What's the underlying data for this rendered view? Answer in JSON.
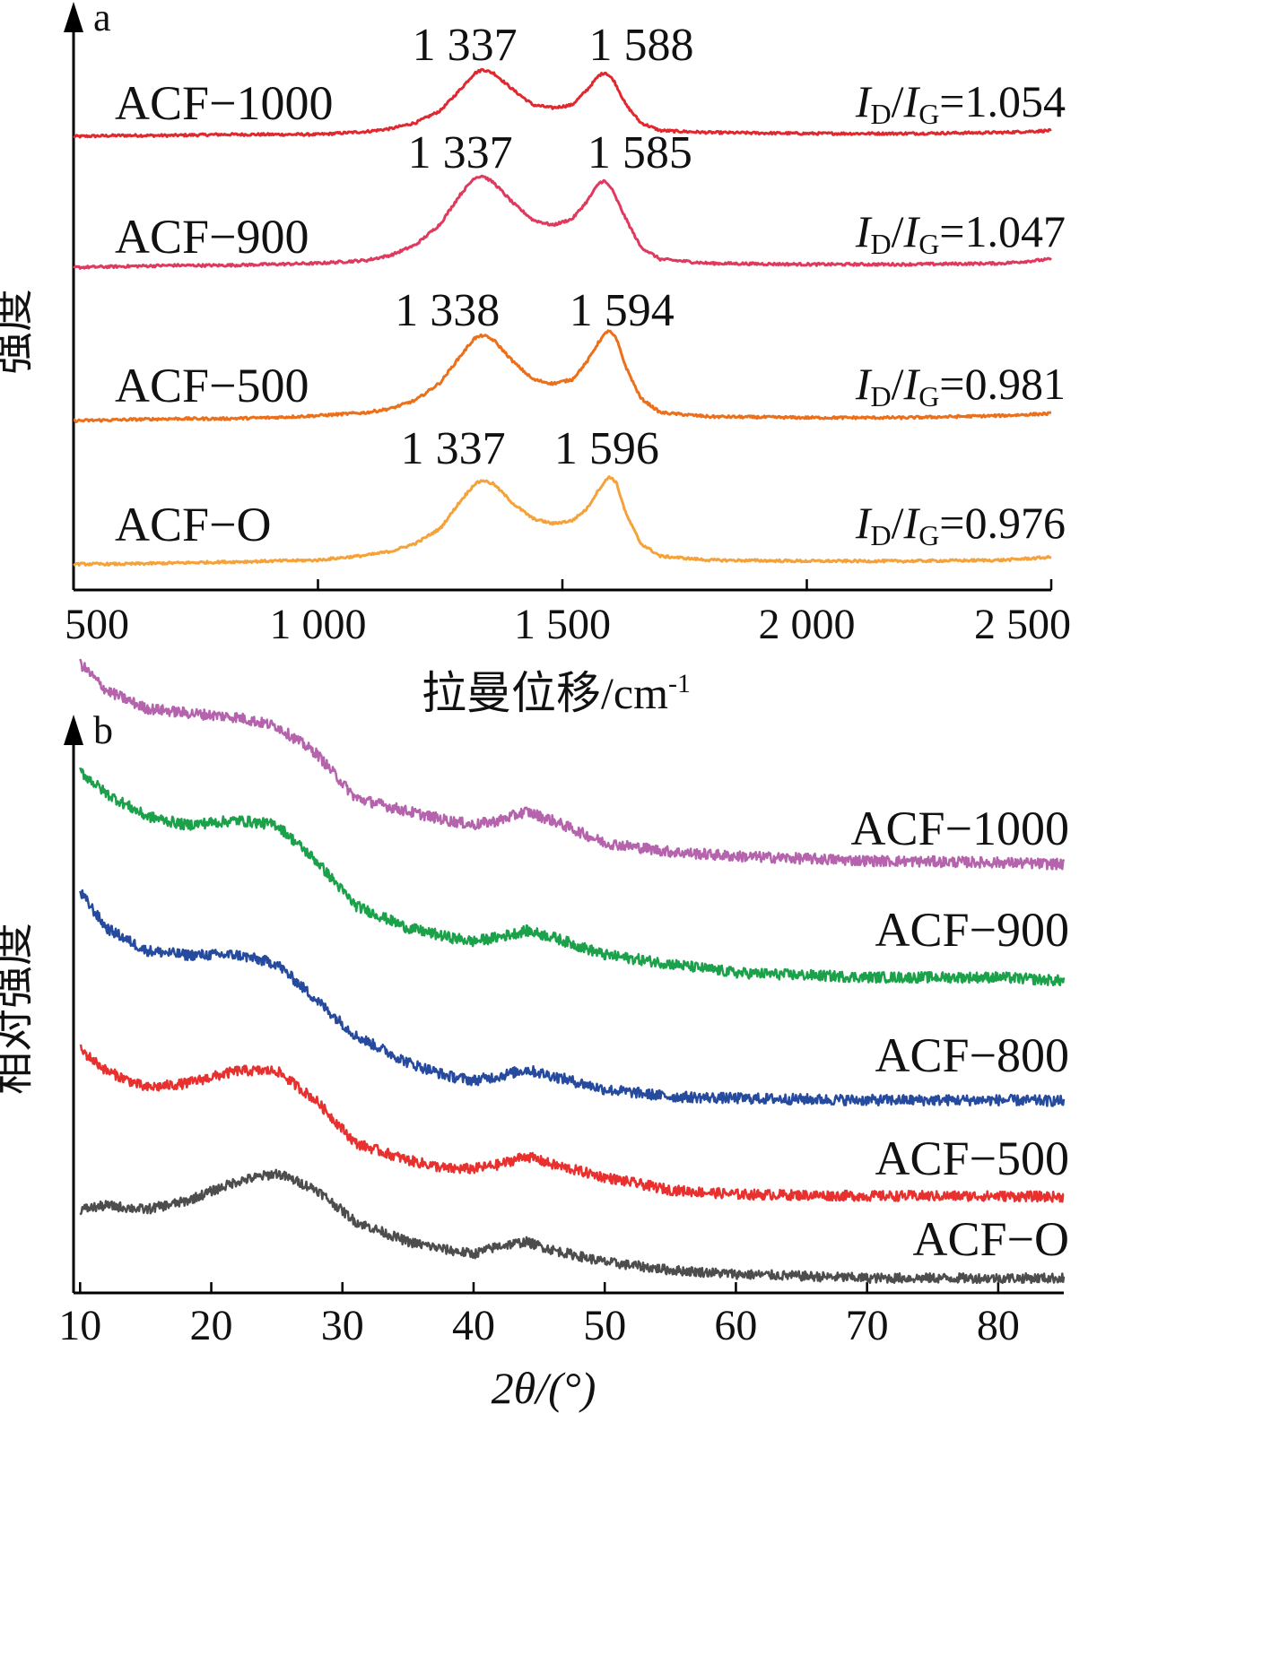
{
  "chart_data": [
    {
      "id": "a",
      "panel_label": "a",
      "type": "line",
      "xlabel_main": "拉曼位移/cm",
      "xlabel_sup": "-1",
      "ylabel": "强度",
      "xlim": [
        500,
        2500
      ],
      "xticks": [
        500,
        1000,
        1500,
        2000,
        2500
      ],
      "xtick_labels": [
        "500",
        "1 000",
        "1 500",
        "2 000",
        "2 500"
      ],
      "yticks": false,
      "series": [
        {
          "name": "ACF−1000",
          "color": "#e0282f",
          "points": [
            [
              500,
              -0.02
            ],
            [
              600,
              -0.01
            ],
            [
              700,
              -0.01
            ],
            [
              800,
              0
            ],
            [
              900,
              0
            ],
            [
              1000,
              0
            ],
            [
              1100,
              0.03
            ],
            [
              1150,
              0.06
            ],
            [
              1200,
              0.12
            ],
            [
              1250,
              0.24
            ],
            [
              1290,
              0.45
            ],
            [
              1320,
              0.62
            ],
            [
              1337,
              0.66
            ],
            [
              1360,
              0.62
            ],
            [
              1400,
              0.45
            ],
            [
              1440,
              0.3
            ],
            [
              1480,
              0.27
            ],
            [
              1520,
              0.3
            ],
            [
              1550,
              0.45
            ],
            [
              1575,
              0.6
            ],
            [
              1588,
              0.63
            ],
            [
              1605,
              0.55
            ],
            [
              1630,
              0.3
            ],
            [
              1660,
              0.12
            ],
            [
              1700,
              0.04
            ],
            [
              1800,
              0.02
            ],
            [
              2000,
              0.01
            ],
            [
              2200,
              0.01
            ],
            [
              2400,
              0.02
            ],
            [
              2500,
              0.04
            ]
          ],
          "peaks": [
            {
              "x": 1337,
              "label": "1 337"
            },
            {
              "x": 1588,
              "label": "1 588"
            }
          ],
          "ratio_value": "=1.054"
        },
        {
          "name": "ACF−900",
          "color": "#df3a5e",
          "points": [
            [
              500,
              -0.02
            ],
            [
              600,
              -0.01
            ],
            [
              700,
              0
            ],
            [
              800,
              0
            ],
            [
              900,
              0.01
            ],
            [
              1000,
              0.02
            ],
            [
              1100,
              0.05
            ],
            [
              1150,
              0.1
            ],
            [
              1200,
              0.2
            ],
            [
              1250,
              0.4
            ],
            [
              1290,
              0.68
            ],
            [
              1320,
              0.85
            ],
            [
              1337,
              0.87
            ],
            [
              1360,
              0.8
            ],
            [
              1400,
              0.6
            ],
            [
              1440,
              0.44
            ],
            [
              1480,
              0.39
            ],
            [
              1520,
              0.45
            ],
            [
              1550,
              0.62
            ],
            [
              1575,
              0.8
            ],
            [
              1585,
              0.82
            ],
            [
              1600,
              0.75
            ],
            [
              1630,
              0.45
            ],
            [
              1660,
              0.18
            ],
            [
              1700,
              0.06
            ],
            [
              1800,
              0.02
            ],
            [
              2000,
              0.01
            ],
            [
              2200,
              0.01
            ],
            [
              2400,
              0.02
            ],
            [
              2500,
              0.06
            ]
          ],
          "peaks": [
            {
              "x": 1337,
              "label": "1 337"
            },
            {
              "x": 1585,
              "label": "1 585"
            }
          ],
          "ratio_value": "=1.047"
        },
        {
          "name": "ACF−500",
          "color": "#ec6f1a",
          "points": [
            [
              500,
              -0.02
            ],
            [
              600,
              -0.01
            ],
            [
              700,
              0
            ],
            [
              800,
              0
            ],
            [
              900,
              0.01
            ],
            [
              1000,
              0.03
            ],
            [
              1100,
              0.06
            ],
            [
              1150,
              0.1
            ],
            [
              1200,
              0.18
            ],
            [
              1250,
              0.35
            ],
            [
              1290,
              0.6
            ],
            [
              1320,
              0.78
            ],
            [
              1338,
              0.81
            ],
            [
              1360,
              0.76
            ],
            [
              1400,
              0.55
            ],
            [
              1440,
              0.38
            ],
            [
              1480,
              0.34
            ],
            [
              1520,
              0.38
            ],
            [
              1550,
              0.55
            ],
            [
              1575,
              0.75
            ],
            [
              1594,
              0.86
            ],
            [
              1610,
              0.78
            ],
            [
              1630,
              0.5
            ],
            [
              1660,
              0.2
            ],
            [
              1700,
              0.06
            ],
            [
              1800,
              0.02
            ],
            [
              2000,
              0.01
            ],
            [
              2200,
              0.01
            ],
            [
              2400,
              0.03
            ],
            [
              2500,
              0.05
            ]
          ],
          "peaks": [
            {
              "x": 1338,
              "label": "1 338"
            },
            {
              "x": 1594,
              "label": "1 594"
            }
          ],
          "ratio_value": "=0.981"
        },
        {
          "name": "ACF−O",
          "color": "#f5a23a",
          "points": [
            [
              500,
              -0.01
            ],
            [
              600,
              -0.01
            ],
            [
              700,
              0
            ],
            [
              800,
              0.01
            ],
            [
              900,
              0.02
            ],
            [
              1000,
              0.03
            ],
            [
              1100,
              0.08
            ],
            [
              1150,
              0.12
            ],
            [
              1200,
              0.2
            ],
            [
              1250,
              0.35
            ],
            [
              1290,
              0.62
            ],
            [
              1320,
              0.8
            ],
            [
              1337,
              0.84
            ],
            [
              1360,
              0.8
            ],
            [
              1400,
              0.6
            ],
            [
              1440,
              0.45
            ],
            [
              1480,
              0.4
            ],
            [
              1520,
              0.43
            ],
            [
              1550,
              0.55
            ],
            [
              1575,
              0.75
            ],
            [
              1596,
              0.88
            ],
            [
              1610,
              0.82
            ],
            [
              1630,
              0.5
            ],
            [
              1660,
              0.2
            ],
            [
              1700,
              0.07
            ],
            [
              1800,
              0.03
            ],
            [
              2000,
              0.02
            ],
            [
              2200,
              0.02
            ],
            [
              2400,
              0.03
            ],
            [
              2500,
              0.06
            ]
          ],
          "peaks": [
            {
              "x": 1337,
              "label": "1 337"
            },
            {
              "x": 1596,
              "label": "1 596"
            }
          ],
          "ratio_value": "=0.976"
        }
      ],
      "ratio_label": {
        "i": "I",
        "d": "D",
        "slash": "/",
        "g": "G"
      }
    },
    {
      "id": "b",
      "panel_label": "b",
      "type": "line",
      "xlabel": "2θ/(°)",
      "ylabel": "相对强度",
      "xlim": [
        9.5,
        85
      ],
      "xticks": [
        10,
        20,
        30,
        40,
        50,
        60,
        70,
        80
      ],
      "xtick_labels": [
        "10",
        "20",
        "30",
        "40",
        "50",
        "60",
        "70",
        "80"
      ],
      "yticks": false,
      "series": [
        {
          "name": "ACF−1000",
          "color": "#b463ac",
          "points": [
            [
              10,
              2.6
            ],
            [
              12,
              2.3
            ],
            [
              15,
              2.1
            ],
            [
              18,
              2.05
            ],
            [
              22,
              2.0
            ],
            [
              25,
              1.9
            ],
            [
              28,
              1.6
            ],
            [
              31,
              1.1
            ],
            [
              35,
              0.95
            ],
            [
              38,
              0.85
            ],
            [
              40,
              0.8
            ],
            [
              42,
              0.85
            ],
            [
              44,
              0.95
            ],
            [
              46,
              0.85
            ],
            [
              50,
              0.6
            ],
            [
              55,
              0.5
            ],
            [
              60,
              0.45
            ],
            [
              70,
              0.4
            ],
            [
              80,
              0.38
            ],
            [
              85,
              0.36
            ]
          ]
        },
        {
          "name": "ACF−900",
          "color": "#1aa14a",
          "points": [
            [
              10,
              2.7
            ],
            [
              12,
              2.45
            ],
            [
              15,
              2.2
            ],
            [
              18,
              2.1
            ],
            [
              22,
              2.15
            ],
            [
              25,
              2.1
            ],
            [
              28,
              1.7
            ],
            [
              31,
              1.2
            ],
            [
              35,
              0.95
            ],
            [
              38,
              0.85
            ],
            [
              40,
              0.8
            ],
            [
              42,
              0.85
            ],
            [
              44,
              0.92
            ],
            [
              46,
              0.85
            ],
            [
              50,
              0.65
            ],
            [
              55,
              0.55
            ],
            [
              60,
              0.45
            ],
            [
              70,
              0.4
            ],
            [
              80,
              0.4
            ],
            [
              85,
              0.36
            ]
          ]
        },
        {
          "name": "ACF−800",
          "color": "#264a9e",
          "points": [
            [
              10,
              2.7
            ],
            [
              12,
              2.3
            ],
            [
              15,
              2.05
            ],
            [
              18,
              2.0
            ],
            [
              22,
              2.0
            ],
            [
              25,
              1.9
            ],
            [
              28,
              1.5
            ],
            [
              31,
              1.1
            ],
            [
              35,
              0.8
            ],
            [
              38,
              0.65
            ],
            [
              40,
              0.6
            ],
            [
              42,
              0.65
            ],
            [
              44,
              0.72
            ],
            [
              46,
              0.65
            ],
            [
              50,
              0.5
            ],
            [
              55,
              0.42
            ],
            [
              60,
              0.4
            ],
            [
              70,
              0.38
            ],
            [
              80,
              0.38
            ],
            [
              85,
              0.37
            ]
          ]
        },
        {
          "name": "ACF−500",
          "color": "#e8312f",
          "points": [
            [
              10,
              2.1
            ],
            [
              12,
              1.85
            ],
            [
              15,
              1.65
            ],
            [
              18,
              1.7
            ],
            [
              22,
              1.85
            ],
            [
              25,
              1.85
            ],
            [
              28,
              1.5
            ],
            [
              31,
              1.0
            ],
            [
              35,
              0.8
            ],
            [
              38,
              0.7
            ],
            [
              40,
              0.7
            ],
            [
              42,
              0.75
            ],
            [
              44,
              0.85
            ],
            [
              46,
              0.75
            ],
            [
              50,
              0.6
            ],
            [
              55,
              0.45
            ],
            [
              60,
              0.4
            ],
            [
              70,
              0.38
            ],
            [
              80,
              0.38
            ],
            [
              85,
              0.37
            ]
          ]
        },
        {
          "name": "ACF−O",
          "color": "#4d4d4d",
          "points": [
            [
              10,
              1.4
            ],
            [
              12,
              1.45
            ],
            [
              15,
              1.4
            ],
            [
              18,
              1.5
            ],
            [
              22,
              1.75
            ],
            [
              25,
              1.85
            ],
            [
              28,
              1.65
            ],
            [
              31,
              1.25
            ],
            [
              35,
              1.0
            ],
            [
              38,
              0.9
            ],
            [
              40,
              0.85
            ],
            [
              42,
              0.95
            ],
            [
              44,
              1.0
            ],
            [
              46,
              0.9
            ],
            [
              50,
              0.75
            ],
            [
              55,
              0.65
            ],
            [
              60,
              0.6
            ],
            [
              70,
              0.55
            ],
            [
              80,
              0.55
            ],
            [
              85,
              0.55
            ]
          ]
        }
      ]
    }
  ]
}
